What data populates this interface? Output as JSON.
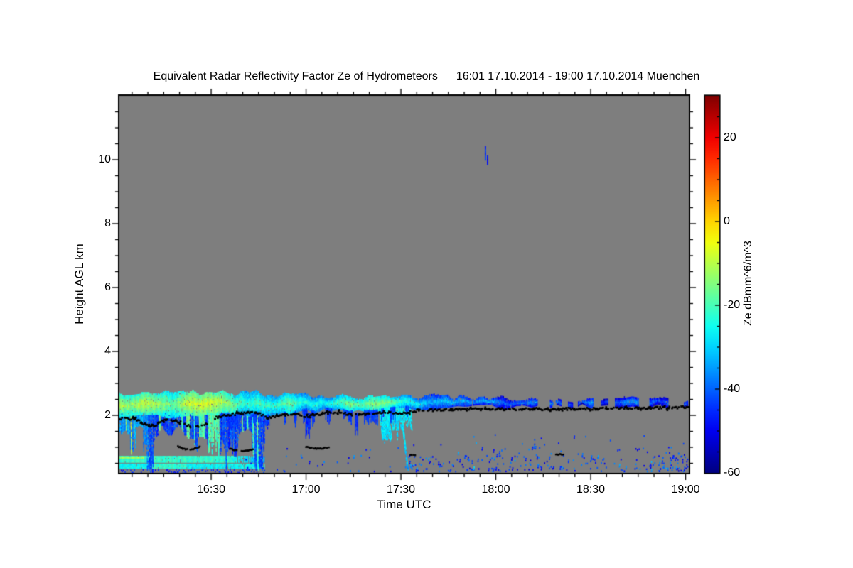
{
  "page": {
    "background": "#ffffff"
  },
  "header": {
    "title_main": "Equivalent Radar Reflectivity Factor Ze of Hydrometeors",
    "title_period": "16:01 17.10.2014 - 19:00 17.10.2014 Muenchen"
  },
  "axes": {
    "xlabel": "Time UTC",
    "ylabel": "Height AGL km",
    "x_ticks": [
      {
        "m": 30,
        "label": "16:30"
      },
      {
        "m": 60,
        "label": "17:00"
      },
      {
        "m": 90,
        "label": "17:30"
      },
      {
        "m": 120,
        "label": "18:00"
      },
      {
        "m": 150,
        "label": "18:30"
      },
      {
        "m": 180,
        "label": "19:00"
      }
    ],
    "y_ticks": [
      {
        "h": 2,
        "label": "2"
      },
      {
        "h": 4,
        "label": "4"
      },
      {
        "h": 6,
        "label": "6"
      },
      {
        "h": 8,
        "label": "8"
      },
      {
        "h": 10,
        "label": "10"
      }
    ],
    "x_minor_step_min": 5,
    "y_minor_step_km": 0.5
  },
  "colorbar": {
    "label": "Ze dBmm^6/m^3",
    "range": [
      -60,
      30
    ],
    "ticks": [
      {
        "v": 20,
        "label": "20"
      },
      {
        "v": 0,
        "label": "0"
      },
      {
        "v": -20,
        "label": "-20"
      },
      {
        "v": -40,
        "label": "-40"
      },
      {
        "v": -60,
        "label": "-60"
      }
    ],
    "minor_step": 5,
    "colormap": "jet"
  },
  "colors": {
    "plot_background_gray": "#7e7e7e",
    "frame": "#000000",
    "text": "#000000",
    "ceilometer": "#000000"
  },
  "chart_data": {
    "type": "heatmap",
    "title": "Equivalent Radar Reflectivity Factor Ze of Hydrometeors",
    "site": "Muenchen",
    "time_start": "16:01 17.10.2014",
    "time_end": "19:00 17.10.2014",
    "x_axis_minutes_after_1600": [
      1,
      181
    ],
    "height_km_range": [
      0.2,
      12
    ],
    "value_units": "Ze dBmm^6/m^3",
    "value_range": [
      -60,
      30
    ],
    "no_signal_color": "gray",
    "features": {
      "cloud_band": {
        "time_min": [
          1,
          181
        ],
        "top_km": {
          "m": [
            1,
            40,
            95,
            135,
            181
          ],
          "h": [
            2.72,
            2.68,
            2.56,
            2.5,
            2.48
          ]
        },
        "bottom_km": {
          "m": [
            1,
            40,
            95,
            135,
            181
          ],
          "h": [
            1.98,
            2.05,
            2.26,
            2.3,
            2.33
          ]
        },
        "peak_dbz": {
          "m": [
            1,
            30,
            55,
            86,
            96,
            120,
            135,
            181
          ],
          "v": [
            -9,
            -11,
            -22,
            -18,
            -30,
            -33,
            -38,
            -38
          ]
        },
        "dashed_after_min": 128
      },
      "virga_left": {
        "time_min": [
          1,
          48
        ],
        "top_km": 2.05,
        "deep_reach_km": 0.22,
        "typical_dbz": -42,
        "bright_streak_dbz": -18
      },
      "virga_mid": {
        "time_min": [
          48,
          84
        ],
        "top_km": 2.05,
        "reach_km": 1.6,
        "dbz": -45
      },
      "plume": {
        "time_min": [
          83,
          93
        ],
        "top_km": 2.35,
        "reach_km": 1.1,
        "dbz": -26
      },
      "low_layer_upper": {
        "time_min": [
          1,
          47
        ],
        "h_km": [
          0.55,
          0.75
        ],
        "dbz": -22,
        "bright_top_until_min": 9,
        "bright_top_dbz": -11
      },
      "low_layer_lower": {
        "time_min": [
          1,
          47
        ],
        "h_km": [
          0.36,
          0.5
        ],
        "dbz": -26
      },
      "surface_specks": {
        "time_min": [
          1,
          47
        ],
        "h_km": [
          0.2,
          0.3
        ],
        "dbz": -46
      },
      "noise_specks": {
        "time_min": [
          40,
          181
        ],
        "h_km": [
          0.2,
          1.45
        ],
        "dbz": [
          -52,
          -36
        ],
        "density_ramp_min": 92
      },
      "high_blip": {
        "time_min": [
          116.5,
          118
        ],
        "h_km": [
          9.85,
          10.45
        ],
        "dbz": -45
      },
      "ceilometer_track_km": {
        "m": [
          1,
          6,
          9,
          12,
          15,
          20,
          24,
          28,
          32,
          38,
          44,
          48,
          52,
          56,
          60,
          65,
          70,
          75,
          80,
          85,
          90,
          95,
          105,
          120,
          140,
          160,
          181
        ],
        "h": [
          1.9,
          1.88,
          1.72,
          1.65,
          1.85,
          1.8,
          1.62,
          1.7,
          1.95,
          2.05,
          2.1,
          1.93,
          2.0,
          2.05,
          1.96,
          2.05,
          2.1,
          2.0,
          2.05,
          2.1,
          2.05,
          2.15,
          2.18,
          2.2,
          2.2,
          2.22,
          2.25
        ]
      },
      "ceilometer_dashes": [
        {
          "time_min": [
            19.5,
            26.5
          ],
          "h_km": 0.93,
          "arc": 0.1
        },
        {
          "time_min": [
            36,
            43.5
          ],
          "h_km": 0.88,
          "arc": 0.08
        },
        {
          "time_min": [
            60,
            67.5
          ],
          "h_km": 0.96,
          "arc": 0.05
        },
        {
          "time_min": [
            93,
            94.5
          ],
          "h_km": 0.75,
          "arc": 0
        },
        {
          "time_min": [
            139,
            141.5
          ],
          "h_km": 0.78,
          "arc": 0
        }
      ]
    }
  }
}
